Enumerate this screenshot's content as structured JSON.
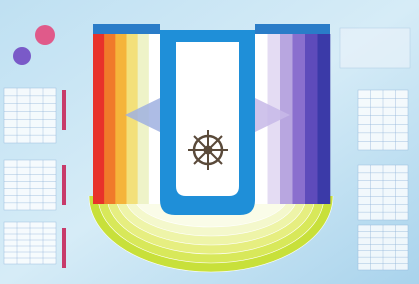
{
  "palette": {
    "left_bands": [
      "#e8322a",
      "#f07a2a",
      "#f5b43a",
      "#f3e07a",
      "#eef3c8",
      "#ffffff"
    ],
    "right_bands": [
      "#ffffff",
      "#e4dcf3",
      "#b8a6e0",
      "#8a6fce",
      "#5e4bbb",
      "#3b3aa8"
    ],
    "arc_bands": [
      "#c8e03a",
      "#d8e85a",
      "#e6ee80",
      "#eef4a8",
      "#f4f8cc",
      "#fafce8"
    ]
  }
}
